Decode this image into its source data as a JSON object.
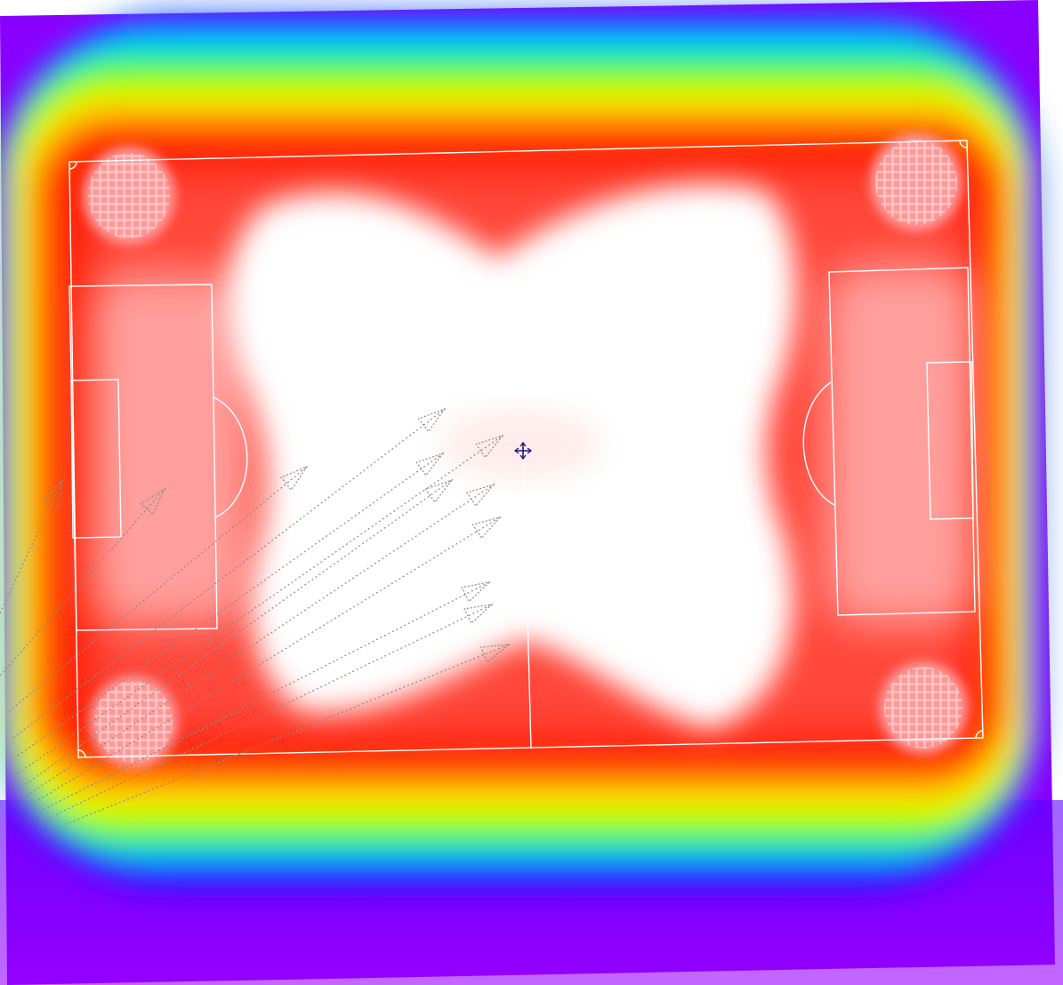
{
  "view": {
    "type": "coverage-heatmap",
    "palette": [
      "#ffffff",
      "#ff0000",
      "#ffff00",
      "#00ff00",
      "#00ffff",
      "#0000ff",
      "#8a00ff"
    ],
    "pitch_line_color": "#ffffff",
    "pass_line_color": "#8a8a8a",
    "target_marker_color": "#1a1a7a"
  },
  "icons": {
    "center_marker": "crosshair-icon"
  },
  "passes": {
    "count": 12,
    "style": "dotted-arrow"
  }
}
